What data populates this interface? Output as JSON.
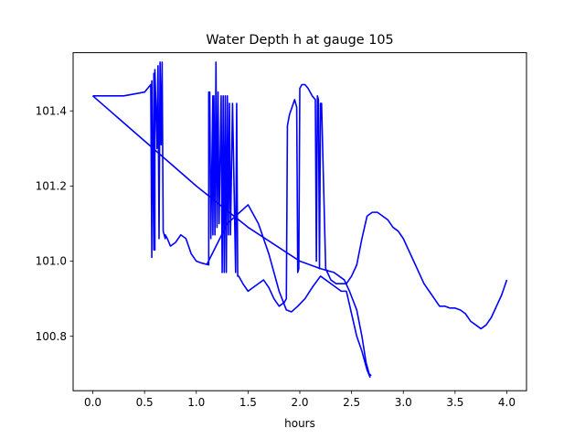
{
  "chart_data": {
    "type": "line",
    "title": "Water Depth h at gauge 105",
    "xlabel": "hours",
    "ylabel": "",
    "xlim": [
      -0.19,
      4.19
    ],
    "ylim": [
      100.655,
      101.555
    ],
    "xticks": [
      0.0,
      0.5,
      1.0,
      1.5,
      2.0,
      2.5,
      3.0,
      3.5,
      4.0
    ],
    "xtick_labels": [
      "0.0",
      "0.5",
      "1.0",
      "1.5",
      "2.0",
      "2.5",
      "3.0",
      "3.5",
      "4.0"
    ],
    "yticks": [
      100.8,
      101.0,
      101.2,
      101.4
    ],
    "ytick_labels": [
      "100.8",
      "101.0",
      "101.2",
      "101.4"
    ],
    "grid": false,
    "legend": "none",
    "series": [
      {
        "color": "#0000ff",
        "x": [
          0.0,
          0.3,
          0.5,
          0.56,
          0.57,
          0.57,
          0.59,
          0.59,
          0.6,
          0.6,
          0.62,
          0.62,
          0.63,
          0.64,
          0.65,
          0.66,
          0.67,
          0.68,
          0.69,
          0.7,
          0.7,
          0.72,
          0.75,
          0.8,
          0.85,
          0.9,
          0.95,
          1.0,
          1.05,
          1.12,
          1.12,
          1.12,
          1.13,
          1.14,
          1.16,
          1.16,
          1.17,
          1.18,
          1.19,
          1.2,
          1.21,
          1.22,
          1.24,
          1.25,
          1.26,
          1.27,
          1.28,
          1.29,
          1.3,
          1.31,
          1.32,
          1.33,
          1.35,
          1.38,
          1.39,
          1.4,
          1.41,
          1.45,
          1.5,
          1.55,
          1.6,
          1.65,
          1.7,
          1.75,
          1.8,
          1.85,
          1.87,
          1.88,
          1.88,
          1.9,
          1.95,
          1.97,
          1.98,
          1.99,
          2.0,
          2.02,
          2.05,
          2.08,
          2.12,
          2.15,
          2.16,
          2.17,
          2.18,
          2.19,
          2.2,
          2.2,
          2.21,
          2.25,
          2.3,
          2.35,
          2.4,
          2.45,
          2.5,
          2.55,
          2.6,
          2.65,
          2.7,
          2.75,
          2.8,
          2.85,
          2.9,
          2.95,
          3.0,
          3.05,
          3.1,
          3.15,
          3.2,
          3.25,
          3.3,
          3.35,
          3.4,
          3.45,
          3.5,
          3.55,
          3.6,
          3.65,
          3.7,
          3.75,
          3.8,
          3.85,
          3.9,
          3.95,
          4.0
        ],
        "y": [
          101.44,
          101.44,
          101.45,
          101.47,
          101.01,
          101.48,
          101.03,
          101.5,
          101.03,
          101.51,
          101.32,
          101.3,
          101.52,
          101.06,
          101.53,
          101.31,
          101.53,
          101.08,
          101.07,
          101.06,
          101.07,
          101.06,
          101.04,
          101.05,
          101.07,
          101.06,
          101.02,
          101.0,
          100.995,
          100.99,
          101.45,
          101.45,
          101.45,
          101.06,
          101.44,
          101.07,
          101.44,
          101.07,
          101.53,
          101.09,
          101.45,
          101.1,
          101.44,
          100.97,
          101.44,
          100.97,
          101.44,
          100.97,
          101.44,
          101.07,
          101.42,
          101.07,
          101.42,
          100.97,
          101.42,
          100.96,
          100.96,
          100.94,
          100.92,
          100.93,
          100.94,
          100.95,
          100.93,
          100.9,
          100.88,
          100.89,
          100.9,
          101.35,
          101.36,
          101.39,
          101.43,
          101.41,
          100.97,
          100.98,
          101.46,
          101.47,
          101.47,
          101.46,
          101.44,
          101.43,
          101.0,
          101.44,
          101.43,
          100.98,
          101.42,
          101.42,
          101.42,
          100.98,
          100.95,
          100.94,
          100.94,
          100.94,
          100.96,
          100.99,
          101.06,
          101.12,
          101.13,
          101.13,
          101.12,
          101.11,
          101.09,
          101.08,
          101.06,
          101.03,
          101.0,
          100.97,
          100.94,
          100.92,
          100.9,
          100.88,
          100.88,
          100.875,
          100.875,
          100.87,
          100.86,
          100.84,
          100.83,
          100.82,
          100.83,
          100.85,
          100.88,
          100.91,
          100.95
        ]
      },
      {
        "color": "#0000ff",
        "x": [
          0.0,
          0.5,
          1.0,
          1.5,
          2.0,
          2.2,
          2.33,
          2.38,
          2.43,
          2.48,
          2.55,
          2.6,
          2.64,
          2.67,
          2.69
        ],
        "y": [
          101.44,
          101.32,
          101.2,
          101.09,
          101.0,
          100.98,
          100.97,
          100.96,
          100.95,
          100.92,
          100.87,
          100.8,
          100.73,
          100.7,
          100.695
        ]
      },
      {
        "color": "#0000ff",
        "x": [
          1.1,
          1.3,
          1.5,
          1.6,
          1.7,
          1.8,
          1.87,
          1.92,
          1.98,
          2.05,
          2.12,
          2.2,
          2.3,
          2.4,
          2.45,
          2.5,
          2.55,
          2.6,
          2.65,
          2.68
        ],
        "y": [
          100.99,
          101.1,
          101.15,
          101.1,
          101.02,
          100.92,
          100.87,
          100.865,
          100.88,
          100.9,
          100.93,
          100.96,
          100.94,
          100.92,
          100.92,
          100.86,
          100.8,
          100.76,
          100.71,
          100.69
        ]
      }
    ]
  }
}
